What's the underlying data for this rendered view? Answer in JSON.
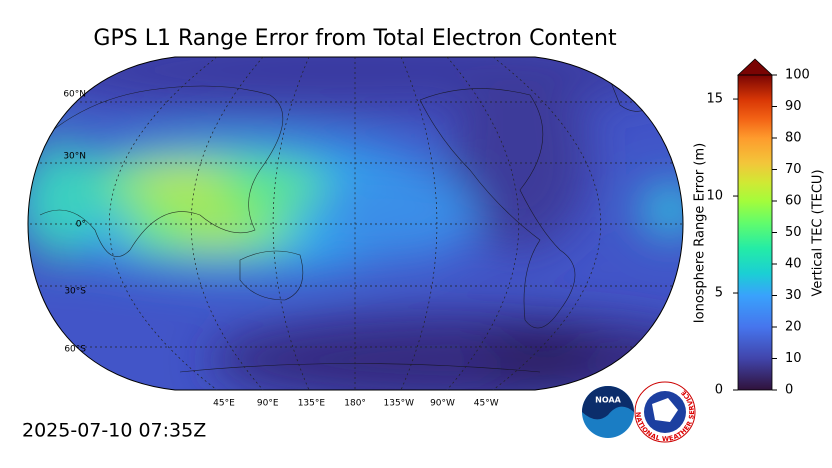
{
  "title": "GPS L1 Range Error from Total Electron Content",
  "timestamp": "2025-07-10 07:35Z",
  "map": {
    "lat_labels": [
      "60°N",
      "30°N",
      "0°",
      "30°S",
      "60°S"
    ],
    "lon_labels": [
      "45°E",
      "90°E",
      "135°E",
      "180°",
      "135°W",
      "90°W",
      "45°W"
    ]
  },
  "colorbar": {
    "range_error": {
      "label": "Ionosphere Range Error (m)",
      "lim": [
        0,
        16.24
      ],
      "ticks": [
        0,
        5,
        10,
        15
      ]
    },
    "tec": {
      "label": "Vertical TEC (TECU)",
      "lim": [
        0,
        100
      ],
      "ticks": [
        0,
        10,
        20,
        30,
        40,
        50,
        60,
        70,
        80,
        90,
        100
      ]
    }
  },
  "logos": {
    "noaa": "NOAA",
    "nws": "NATIONAL WEATHER SERVICE"
  }
}
